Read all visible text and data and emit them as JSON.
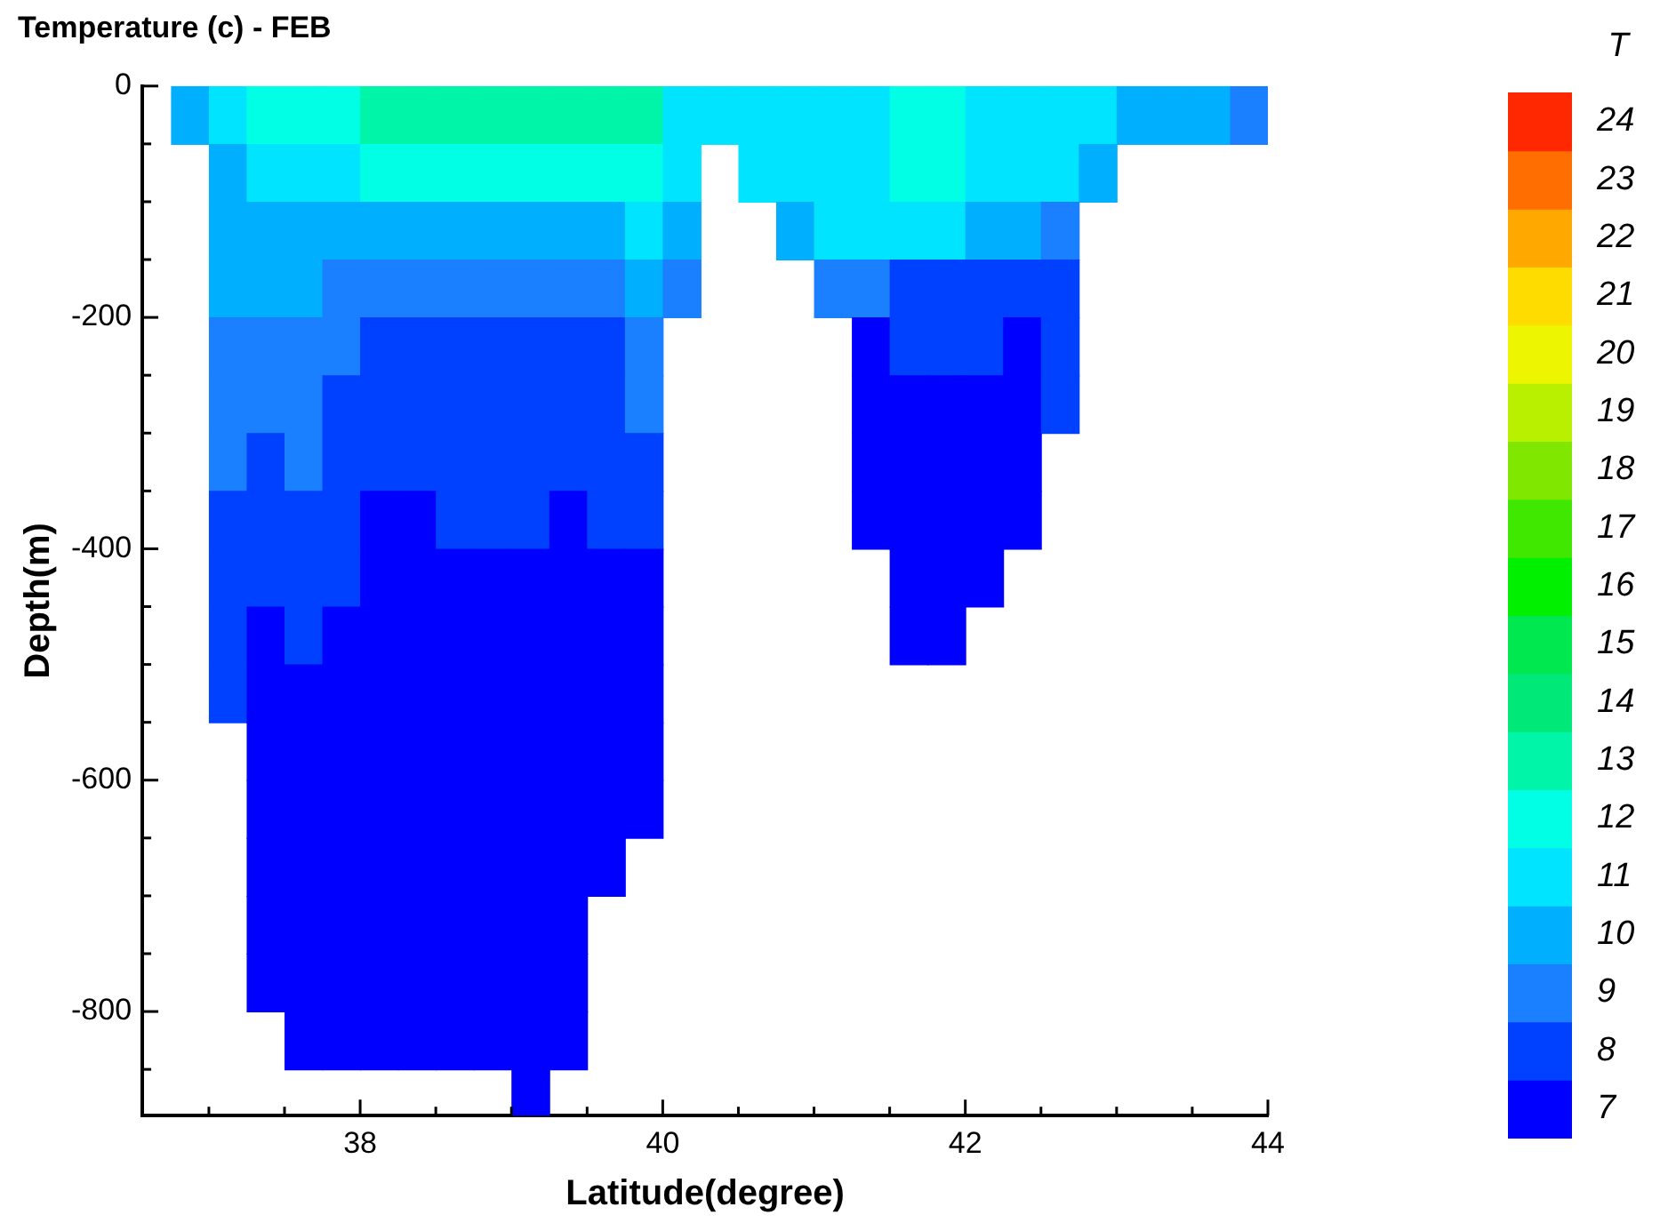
{
  "chart_data": {
    "type": "heatmap",
    "title": "Temperature (c) - FEB",
    "xlabel": "Latitude(degree)",
    "ylabel": "Depth(m)",
    "clabel": "T",
    "xlim": [
      36.56,
      44
    ],
    "ylim": [
      -890,
      0
    ],
    "xticks": [
      {
        "value": 37,
        "label": null
      },
      {
        "value": 37.5,
        "label": null
      },
      38,
      {
        "value": 38.5,
        "label": null
      },
      {
        "value": 39,
        "label": null
      },
      {
        "value": 39.5,
        "label": null
      },
      40,
      {
        "value": 40.5,
        "label": null
      },
      {
        "value": 41,
        "label": null
      },
      {
        "value": 41.5,
        "label": null
      },
      42,
      {
        "value": 42.5,
        "label": null
      },
      {
        "value": 43,
        "label": null
      },
      {
        "value": 43.5,
        "label": null
      },
      44
    ],
    "yticks": [
      0,
      {
        "value": -50,
        "label": null
      },
      {
        "value": -100,
        "label": null
      },
      {
        "value": -150,
        "label": null
      },
      -200,
      {
        "value": -250,
        "label": null
      },
      {
        "value": -300,
        "label": null
      },
      {
        "value": -350,
        "label": null
      },
      -400,
      {
        "value": -450,
        "label": null
      },
      {
        "value": -500,
        "label": null
      },
      {
        "value": -550,
        "label": null
      },
      -600,
      {
        "value": -650,
        "label": null
      },
      {
        "value": -700,
        "label": null
      },
      {
        "value": -750,
        "label": null
      },
      -800,
      {
        "value": -850,
        "label": null
      }
    ],
    "x": [
      36.875,
      37.125,
      37.375,
      37.625,
      37.875,
      38.125,
      38.375,
      38.625,
      38.875,
      39.125,
      39.375,
      39.625,
      39.875,
      40.125,
      40.375,
      40.625,
      40.875,
      41.125,
      41.375,
      41.625,
      41.875,
      42.125,
      42.375,
      42.625,
      42.875,
      43.125,
      43.375,
      43.625,
      43.875
    ],
    "y": [
      -25,
      -75,
      -125,
      -175,
      -225,
      -275,
      -325,
      -375,
      -425,
      -475,
      -525,
      -575,
      -625,
      -675,
      -725,
      -775,
      -825,
      -875
    ],
    "clim": [
      6.5,
      24.5
    ],
    "cticks": [
      7,
      8,
      9,
      10,
      11,
      12,
      13,
      14,
      15,
      16,
      17,
      18,
      19,
      20,
      21,
      22,
      23,
      24
    ],
    "colors": [
      "#0000ff",
      "#0040ff",
      "#1a80ff",
      "#00b0ff",
      "#00e4ff",
      "#00ffe4",
      "#00f5a8",
      "#00e878",
      "#00e850",
      "#00f000",
      "#40e800",
      "#80e800",
      "#b8f000",
      "#eef500",
      "#ffdc00",
      "#ffa800",
      "#ff6e00",
      "#ff2800"
    ],
    "cells": [
      [
        10,
        11,
        12,
        12,
        12,
        13,
        13,
        13,
        13,
        13,
        13,
        13,
        13,
        11,
        11,
        11,
        11,
        11,
        11,
        12,
        12,
        11,
        11,
        11,
        11,
        10,
        10,
        10,
        9
      ],
      [
        null,
        10,
        11,
        11,
        11,
        12,
        12,
        12,
        12,
        12,
        12,
        12,
        12,
        11,
        null,
        11,
        11,
        11,
        11,
        12,
        12,
        11,
        11,
        11,
        10,
        null,
        null,
        null,
        null
      ],
      [
        null,
        10,
        10,
        10,
        10,
        10,
        10,
        10,
        10,
        10,
        10,
        10,
        11,
        10,
        null,
        null,
        10,
        11,
        11,
        11,
        11,
        10,
        10,
        9,
        null,
        null,
        null,
        null,
        null
      ],
      [
        null,
        10,
        10,
        10,
        9,
        9,
        9,
        9,
        9,
        9,
        9,
        9,
        10,
        9,
        null,
        null,
        null,
        9,
        9,
        8,
        8,
        8,
        8,
        8,
        null,
        null,
        null,
        null,
        null
      ],
      [
        null,
        9,
        9,
        9,
        9,
        8,
        8,
        8,
        8,
        8,
        8,
        8,
        9,
        null,
        null,
        null,
        null,
        null,
        7,
        8,
        8,
        8,
        7,
        8,
        null,
        null,
        null,
        null,
        null
      ],
      [
        null,
        9,
        9,
        9,
        8,
        8,
        8,
        8,
        8,
        8,
        8,
        8,
        9,
        null,
        null,
        null,
        null,
        null,
        7,
        7,
        7,
        7,
        7,
        8,
        null,
        null,
        null,
        null,
        null
      ],
      [
        null,
        9,
        8,
        9,
        8,
        8,
        8,
        8,
        8,
        8,
        8,
        8,
        8,
        null,
        null,
        null,
        null,
        null,
        7,
        7,
        7,
        7,
        7,
        null,
        null,
        null,
        null,
        null,
        null
      ],
      [
        null,
        8,
        8,
        8,
        8,
        7,
        7,
        8,
        8,
        8,
        7,
        8,
        8,
        null,
        null,
        null,
        null,
        null,
        7,
        7,
        7,
        7,
        7,
        null,
        null,
        null,
        null,
        null,
        null
      ],
      [
        null,
        8,
        8,
        8,
        8,
        7,
        7,
        7,
        7,
        7,
        7,
        7,
        7,
        null,
        null,
        null,
        null,
        null,
        null,
        7,
        7,
        7,
        null,
        null,
        null,
        null,
        null,
        null,
        null
      ],
      [
        null,
        8,
        7,
        8,
        7,
        7,
        7,
        7,
        7,
        7,
        7,
        7,
        7,
        null,
        null,
        null,
        null,
        null,
        null,
        7,
        7,
        null,
        null,
        null,
        null,
        null,
        null,
        null,
        null
      ],
      [
        null,
        8,
        7,
        7,
        7,
        7,
        7,
        7,
        7,
        7,
        7,
        7,
        7,
        null,
        null,
        null,
        null,
        null,
        null,
        null,
        null,
        null,
        null,
        null,
        null,
        null,
        null,
        null,
        null
      ],
      [
        null,
        null,
        7,
        7,
        7,
        7,
        7,
        7,
        7,
        7,
        7,
        7,
        7,
        null,
        null,
        null,
        null,
        null,
        null,
        null,
        null,
        null,
        null,
        null,
        null,
        null,
        null,
        null,
        null
      ],
      [
        null,
        null,
        7,
        7,
        7,
        7,
        7,
        7,
        7,
        7,
        7,
        7,
        7,
        null,
        null,
        null,
        null,
        null,
        null,
        null,
        null,
        null,
        null,
        null,
        null,
        null,
        null,
        null,
        null
      ],
      [
        null,
        null,
        7,
        7,
        7,
        7,
        7,
        7,
        7,
        7,
        7,
        7,
        null,
        null,
        null,
        null,
        null,
        null,
        null,
        null,
        null,
        null,
        null,
        null,
        null,
        null,
        null,
        null,
        null
      ],
      [
        null,
        null,
        7,
        7,
        7,
        7,
        7,
        7,
        7,
        7,
        7,
        null,
        null,
        null,
        null,
        null,
        null,
        null,
        null,
        null,
        null,
        null,
        null,
        null,
        null,
        null,
        null,
        null,
        null
      ],
      [
        null,
        null,
        7,
        7,
        7,
        7,
        7,
        7,
        7,
        7,
        7,
        null,
        null,
        null,
        null,
        null,
        null,
        null,
        null,
        null,
        null,
        null,
        null,
        null,
        null,
        null,
        null,
        null,
        null
      ],
      [
        null,
        null,
        null,
        7,
        7,
        7,
        7,
        7,
        7,
        7,
        7,
        null,
        null,
        null,
        null,
        null,
        null,
        null,
        null,
        null,
        null,
        null,
        null,
        null,
        null,
        null,
        null,
        null,
        null
      ],
      [
        null,
        null,
        null,
        null,
        null,
        null,
        null,
        null,
        null,
        7,
        null,
        null,
        null,
        null,
        null,
        null,
        null,
        null,
        null,
        null,
        null,
        null,
        null,
        null,
        null,
        null,
        null,
        null,
        null
      ]
    ]
  }
}
